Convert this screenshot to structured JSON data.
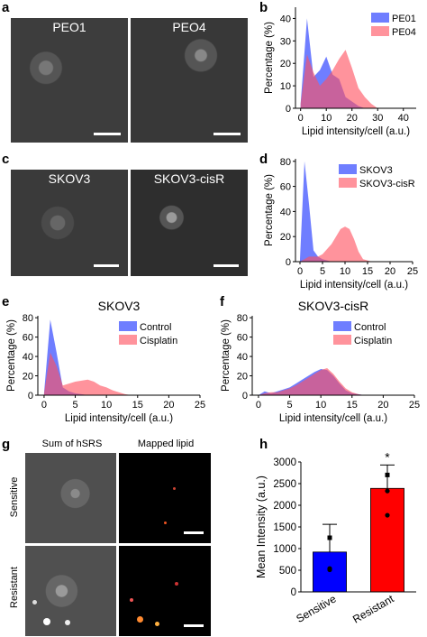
{
  "panels": {
    "a": {
      "letter": "a",
      "left_label": "PEO1",
      "right_label": "PEO4"
    },
    "b": {
      "letter": "b"
    },
    "c": {
      "letter": "c",
      "left_label": "SKOV3",
      "right_label": "SKOV3-cisR"
    },
    "d": {
      "letter": "d"
    },
    "e": {
      "letter": "e",
      "title": "SKOV3"
    },
    "f": {
      "letter": "f",
      "title": "SKOV3-cisR"
    },
    "g": {
      "letter": "g",
      "col1": "Sum of hSRS",
      "col2": "Mapped lipid",
      "row1": "Sensitive",
      "row2": "Resistant"
    },
    "h": {
      "letter": "h"
    }
  },
  "colors": {
    "blue": "#6a78ff",
    "red": "#ff6070",
    "overlap": "#a8508a",
    "bar_blue": "#0000ff",
    "bar_red": "#ff0000"
  },
  "chart_data": [
    {
      "id": "b",
      "type": "area",
      "xlabel": "Lipid intensity/cell (a.u.)",
      "ylabel": "Percentage (%)",
      "xlim": [
        -2,
        45
      ],
      "ylim": [
        0,
        45
      ],
      "xticks": [
        0,
        10,
        20,
        30,
        40
      ],
      "yticks": [
        0,
        10,
        20,
        30,
        40
      ],
      "legend": "top-right",
      "series": [
        {
          "name": "PE01",
          "color": "blue",
          "x": [
            0,
            2.5,
            5,
            7.5,
            10,
            12.5,
            15,
            17.5,
            20,
            22.5,
            25,
            27.5,
            30,
            35,
            40
          ],
          "y": [
            2,
            40,
            14,
            17,
            23,
            15,
            13,
            5,
            3,
            1,
            0,
            0,
            0,
            0,
            0
          ]
        },
        {
          "name": "PE04",
          "color": "red",
          "x": [
            0,
            2.5,
            5,
            7.5,
            10,
            12.5,
            15,
            17.5,
            20,
            22.5,
            25,
            27.5,
            30,
            35,
            40
          ],
          "y": [
            2,
            24,
            16,
            10,
            13,
            17,
            22,
            26,
            18,
            9,
            5,
            2,
            0,
            0,
            0
          ]
        }
      ]
    },
    {
      "id": "d",
      "type": "area",
      "xlabel": "Lipid intensity/cell (a.u.)",
      "ylabel": "Percentage (%)",
      "xlim": [
        -1,
        25
      ],
      "ylim": [
        0,
        82
      ],
      "xticks": [
        0,
        5,
        10,
        15,
        20,
        25
      ],
      "yticks": [
        0,
        20,
        40,
        60,
        80
      ],
      "legend": "top-right",
      "series": [
        {
          "name": "SKOV3",
          "color": "blue",
          "x": [
            0,
            1,
            2,
            3,
            4,
            5,
            6,
            7,
            8,
            9,
            10,
            11,
            12,
            13,
            14,
            15,
            16,
            17,
            18,
            19,
            20,
            21,
            22,
            23,
            24,
            25
          ],
          "y": [
            2,
            80,
            46,
            9,
            4,
            2,
            1,
            0,
            0,
            0,
            0,
            0,
            0,
            0,
            0,
            0,
            0,
            0,
            0,
            0,
            0,
            0,
            0,
            0,
            0,
            0
          ]
        },
        {
          "name": "SKOV3-cisR",
          "color": "red",
          "x": [
            0,
            1,
            2,
            3,
            4,
            5,
            6,
            7,
            8,
            9,
            10,
            11,
            12,
            13,
            14,
            15,
            16,
            17,
            18,
            19,
            20,
            21,
            22,
            23,
            24,
            25
          ],
          "y": [
            0,
            2,
            4,
            4,
            4,
            6,
            10,
            14,
            20,
            26,
            28,
            26,
            18,
            8,
            2,
            1,
            0,
            0,
            0,
            0,
            0,
            0,
            0,
            0,
            0,
            0
          ]
        }
      ]
    },
    {
      "id": "e",
      "type": "area",
      "title": "SKOV3",
      "xlabel": "Lipid intensity/cell (a.u.)",
      "ylabel": "Percentage (%)",
      "xlim": [
        -1,
        25
      ],
      "ylim": [
        0,
        82
      ],
      "xticks": [
        0,
        5,
        10,
        15,
        20,
        25
      ],
      "yticks": [
        0,
        20,
        40,
        60,
        80
      ],
      "legend": "top-right",
      "series": [
        {
          "name": "Control",
          "color": "blue",
          "x": [
            0,
            1,
            2,
            3,
            4,
            5,
            6,
            7,
            8,
            9,
            10,
            11,
            12,
            13,
            14,
            15,
            16,
            17,
            18,
            19,
            20,
            21,
            22,
            23,
            24,
            25
          ],
          "y": [
            2,
            78,
            44,
            8,
            4,
            2,
            1,
            0,
            0,
            0,
            0,
            0,
            0,
            0,
            0,
            0,
            0,
            0,
            0,
            0,
            0,
            0,
            0,
            0,
            0,
            0
          ]
        },
        {
          "name": "Cisplatin",
          "color": "red",
          "x": [
            0,
            1,
            2,
            3,
            4,
            5,
            6,
            7,
            8,
            9,
            10,
            11,
            12,
            13,
            14,
            15,
            16,
            17,
            18,
            19,
            20,
            21,
            22,
            23,
            24,
            25
          ],
          "y": [
            2,
            44,
            30,
            10,
            12,
            14,
            15,
            16,
            14,
            10,
            8,
            5,
            3,
            1,
            0,
            0,
            0,
            0,
            0,
            0,
            0,
            0,
            0,
            0,
            0,
            0
          ]
        }
      ]
    },
    {
      "id": "f",
      "type": "area",
      "title": "SKOV3-cisR",
      "xlabel": "Lipid intensity/cell (a.u.)",
      "ylabel": "Percentage (%)",
      "xlim": [
        -1,
        25
      ],
      "ylim": [
        0,
        82
      ],
      "xticks": [
        0,
        5,
        10,
        15,
        20,
        25
      ],
      "yticks": [
        0,
        20,
        40,
        60,
        80
      ],
      "legend": "top-right",
      "series": [
        {
          "name": "Control",
          "color": "blue",
          "x": [
            0,
            1,
            2,
            3,
            4,
            5,
            6,
            7,
            8,
            9,
            10,
            11,
            12,
            13,
            14,
            15,
            16,
            17,
            18,
            19,
            20,
            21,
            22,
            23,
            24,
            25
          ],
          "y": [
            0,
            4,
            2,
            4,
            6,
            8,
            12,
            16,
            20,
            24,
            27,
            26,
            20,
            12,
            5,
            2,
            1,
            0,
            0,
            0,
            0,
            0,
            0,
            0,
            0,
            0
          ]
        },
        {
          "name": "Cisplatin",
          "color": "red",
          "x": [
            0,
            1,
            2,
            3,
            4,
            5,
            6,
            7,
            8,
            9,
            10,
            11,
            12,
            13,
            14,
            15,
            16,
            17,
            18,
            19,
            20,
            21,
            22,
            23,
            24,
            25
          ],
          "y": [
            0,
            2,
            3,
            3,
            5,
            7,
            10,
            14,
            18,
            22,
            26,
            28,
            22,
            14,
            7,
            3,
            1,
            0,
            0,
            0,
            0,
            0,
            0,
            0,
            0,
            0
          ]
        }
      ]
    },
    {
      "id": "h",
      "type": "bar",
      "categories": [
        "Sensitive",
        "Resistant"
      ],
      "values": [
        920,
        2390
      ],
      "errors": [
        640,
        540
      ],
      "points": [
        [
          1250,
          510,
          540
        ],
        [
          2700,
          2330,
          1770
        ]
      ],
      "significance": "*",
      "ylabel": "Mean Intensity (a.u.)",
      "ylim": [
        0,
        3000
      ],
      "yticks": [
        0,
        500,
        1000,
        1500,
        2000,
        2500,
        3000
      ]
    }
  ]
}
